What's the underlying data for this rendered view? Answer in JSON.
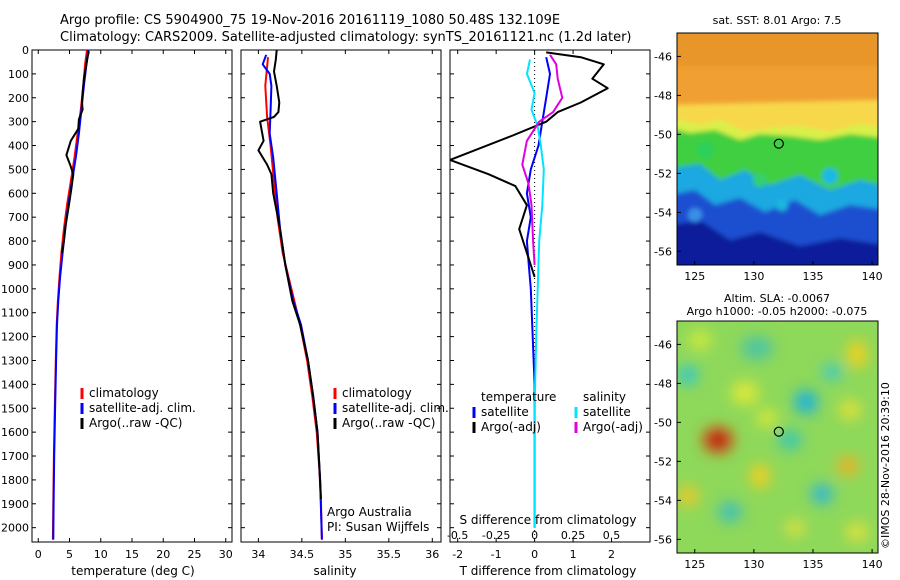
{
  "header": {
    "line1": "Argo profile: CS 5904900_75 19-Nov-2016 20161119_1080 50.48S 132.109E",
    "line2": "Climatology: CARS2009. Satellite-adjusted climatology: synTS_20161121.nc (1.2d later)"
  },
  "credit": "©IMOS 28-Nov-2016 20:39:10",
  "colors": {
    "climatology": "#ff0000",
    "satellite": "#0000ff",
    "argo": "#000000",
    "salinity_satellite": "#00e5ff",
    "salinity_argo": "#e000e0"
  },
  "chart_data": [
    {
      "type": "line",
      "name": "temperature-profile",
      "xlabel": "temperature (deg C)",
      "xlim": [
        -1,
        31
      ],
      "ylim": [
        0,
        2060
      ],
      "xticks": [
        0,
        5,
        10,
        15,
        20,
        25,
        30
      ],
      "yticks": [
        0,
        100,
        200,
        300,
        400,
        500,
        600,
        700,
        800,
        900,
        1000,
        1100,
        1200,
        1300,
        1400,
        1500,
        1600,
        1700,
        1800,
        1900,
        2000
      ],
      "legend": {
        "position": "center",
        "entries": [
          "climatology",
          "satellite-adj. clim.",
          "Argo(..raw -QC)"
        ]
      },
      "series": [
        {
          "name": "climatology",
          "color": "#ff0000",
          "points": [
            [
              7.8,
              0
            ],
            [
              7.5,
              60
            ],
            [
              7.2,
              150
            ],
            [
              6.8,
              250
            ],
            [
              6.3,
              350
            ],
            [
              5.8,
              450
            ],
            [
              5.2,
              550
            ],
            [
              4.6,
              650
            ],
            [
              4.1,
              750
            ],
            [
              3.7,
              850
            ],
            [
              3.4,
              950
            ],
            [
              3.15,
              1050
            ],
            [
              2.95,
              1150
            ],
            [
              2.8,
              1300
            ],
            [
              2.65,
              1500
            ],
            [
              2.5,
              1700
            ],
            [
              2.4,
              1900
            ],
            [
              2.35,
              2050
            ]
          ]
        },
        {
          "name": "satellite-adj. clim.",
          "color": "#0000ff",
          "points": [
            [
              8.0,
              0
            ],
            [
              7.8,
              40
            ],
            [
              7.3,
              150
            ],
            [
              6.9,
              250
            ],
            [
              6.5,
              350
            ],
            [
              6.0,
              450
            ],
            [
              5.4,
              550
            ],
            [
              4.8,
              650
            ],
            [
              4.3,
              750
            ],
            [
              3.9,
              850
            ],
            [
              3.5,
              950
            ],
            [
              3.2,
              1050
            ],
            [
              3.0,
              1150
            ],
            [
              2.85,
              1300
            ],
            [
              2.7,
              1500
            ],
            [
              2.55,
              1700
            ],
            [
              2.45,
              1900
            ],
            [
              2.4,
              2050
            ]
          ]
        },
        {
          "name": "Argo(..raw -QC)",
          "color": "#000000",
          "points": [
            [
              8.1,
              5
            ],
            [
              7.9,
              30
            ],
            [
              7.7,
              60
            ],
            [
              7.3,
              120
            ],
            [
              7.1,
              180
            ],
            [
              7.0,
              220
            ],
            [
              7.1,
              250
            ],
            [
              6.5,
              290
            ],
            [
              6.4,
              330
            ],
            [
              5.2,
              380
            ],
            [
              4.5,
              440
            ],
            [
              5.1,
              480
            ],
            [
              5.6,
              520
            ],
            [
              5.3,
              580
            ],
            [
              4.9,
              650
            ],
            [
              4.4,
              730
            ],
            [
              4.1,
              800
            ],
            [
              3.8,
              850
            ]
          ]
        }
      ]
    },
    {
      "type": "line",
      "name": "salinity-profile",
      "xlabel": "salinity",
      "xlim": [
        33.8,
        36.1
      ],
      "ylim": [
        0,
        2060
      ],
      "xticks": [
        34,
        34.5,
        35,
        35.5,
        36
      ],
      "xticklabels": [
        "34",
        "34.5",
        "35",
        "35.5",
        "36"
      ],
      "legend": {
        "position": "center",
        "entries": [
          "climatology",
          "satellite-adj. clim.",
          "Argo(..raw -QC)"
        ]
      },
      "annotations": [
        "Argo Australia",
        "PI: Susan Wijffels"
      ],
      "series": [
        {
          "name": "climatology",
          "color": "#ff0000",
          "points": [
            [
              34.11,
              30
            ],
            [
              34.08,
              150
            ],
            [
              34.1,
              280
            ],
            [
              34.14,
              400
            ],
            [
              34.18,
              550
            ],
            [
              34.22,
              700
            ],
            [
              34.28,
              850
            ],
            [
              34.38,
              1000
            ],
            [
              34.48,
              1150
            ],
            [
              34.56,
              1300
            ],
            [
              34.62,
              1450
            ],
            [
              34.67,
              1600
            ],
            [
              34.7,
              1750
            ],
            [
              34.72,
              1900
            ],
            [
              34.73,
              2050
            ]
          ]
        },
        {
          "name": "satellite-adj. clim.",
          "color": "#0000ff",
          "points": [
            [
              34.09,
              20
            ],
            [
              34.05,
              60
            ],
            [
              34.09,
              80
            ],
            [
              34.13,
              100
            ],
            [
              34.15,
              150
            ],
            [
              34.14,
              250
            ],
            [
              34.13,
              350
            ],
            [
              34.17,
              450
            ],
            [
              34.21,
              600
            ],
            [
              34.25,
              750
            ],
            [
              34.31,
              900
            ],
            [
              34.4,
              1050
            ],
            [
              34.49,
              1150
            ],
            [
              34.57,
              1300
            ],
            [
              34.63,
              1450
            ],
            [
              34.68,
              1600
            ],
            [
              34.71,
              1800
            ],
            [
              34.73,
              2050
            ]
          ]
        },
        {
          "name": "Argo(..raw -QC)",
          "color": "#000000",
          "points": [
            [
              34.21,
              0
            ],
            [
              34.2,
              40
            ],
            [
              34.18,
              90
            ],
            [
              34.21,
              150
            ],
            [
              34.24,
              220
            ],
            [
              34.23,
              260
            ],
            [
              34.18,
              280
            ],
            [
              34.02,
              300
            ],
            [
              34.06,
              380
            ],
            [
              34.0,
              420
            ],
            [
              34.1,
              480
            ],
            [
              34.15,
              520
            ],
            [
              34.17,
              600
            ],
            [
              34.25,
              750
            ],
            [
              34.31,
              900
            ],
            [
              34.39,
              1050
            ],
            [
              34.48,
              1150
            ],
            [
              34.57,
              1300
            ],
            [
              34.63,
              1450
            ],
            [
              34.68,
              1600
            ],
            [
              34.71,
              1800
            ],
            [
              34.72,
              1880
            ]
          ]
        }
      ]
    },
    {
      "type": "line",
      "name": "difference-profile",
      "xlabel": "T difference from climatology",
      "xlabel_top": "S difference from climatology",
      "xlim": [
        -2.2,
        3.0
      ],
      "ylim": [
        0,
        2060
      ],
      "xticks": [
        -2,
        -1,
        0,
        1,
        2
      ],
      "top_ticks": [
        -0.5,
        -0.25,
        0,
        0.25,
        0.5
      ],
      "top_ticklabels": [
        "-0.5",
        "-0.25",
        "0",
        "0.25",
        "0.5"
      ],
      "legend": {
        "position": "center",
        "temperature_title": "temperature",
        "salinity_title": "salinity",
        "temperature_entries": [
          "satellite",
          "Argo(-adj)"
        ],
        "salinity_entries": [
          "satellite",
          "Argo(-adj)"
        ]
      },
      "series": [
        {
          "name": "temperature satellite",
          "color": "#0000ff",
          "points": [
            [
              0.3,
              30
            ],
            [
              0.4,
              100
            ],
            [
              0.3,
              200
            ],
            [
              0.2,
              300
            ],
            [
              0.1,
              400
            ],
            [
              -0.1,
              500
            ],
            [
              -0.2,
              600
            ],
            [
              -0.1,
              700
            ],
            [
              -0.2,
              800
            ],
            [
              -0.15,
              900
            ],
            [
              -0.1,
              1000
            ],
            [
              -0.05,
              1200
            ],
            [
              0.0,
              1400
            ],
            [
              0.0,
              2000
            ]
          ]
        },
        {
          "name": "temperature Argo(-adj)",
          "color": "#000000",
          "points": [
            [
              0.3,
              10
            ],
            [
              1.2,
              30
            ],
            [
              1.8,
              60
            ],
            [
              1.5,
              120
            ],
            [
              1.9,
              160
            ],
            [
              1.2,
              220
            ],
            [
              0.6,
              260
            ],
            [
              0.3,
              300
            ],
            [
              -0.6,
              360
            ],
            [
              -2.2,
              460
            ],
            [
              -1.2,
              520
            ],
            [
              -0.5,
              570
            ],
            [
              -0.2,
              650
            ],
            [
              -0.4,
              750
            ],
            [
              -0.2,
              850
            ],
            [
              -0.1,
              900
            ],
            [
              0.0,
              950
            ]
          ]
        },
        {
          "name": "salinity satellite",
          "color": "#00e5ff",
          "points": [
            [
              -0.03,
              40
            ],
            [
              -0.05,
              100
            ],
            [
              0.0,
              180
            ],
            [
              -0.02,
              250
            ],
            [
              0.02,
              320
            ],
            [
              0.04,
              400
            ],
            [
              0.06,
              500
            ],
            [
              0.05,
              650
            ],
            [
              0.03,
              800
            ],
            [
              0.02,
              1000
            ],
            [
              0.01,
              1200
            ],
            [
              0.0,
              1500
            ],
            [
              0.0,
              2000
            ]
          ]
        },
        {
          "name": "salinity Argo(-adj)",
          "color": "#e000e0",
          "points": [
            [
              0.1,
              20
            ],
            [
              0.14,
              60
            ],
            [
              0.15,
              120
            ],
            [
              0.18,
              200
            ],
            [
              0.12,
              260
            ],
            [
              0.03,
              300
            ],
            [
              -0.05,
              380
            ],
            [
              -0.08,
              480
            ],
            [
              -0.04,
              560
            ],
            [
              -0.02,
              650
            ],
            [
              -0.01,
              800
            ],
            [
              0.0,
              900
            ]
          ]
        }
      ]
    },
    {
      "type": "heatmap",
      "name": "sst-map",
      "title": "sat. SST: 8.01 Argo: 7.5",
      "xlim": [
        123.5,
        140.5
      ],
      "ylim": [
        -56.7,
        -44.8
      ],
      "xticks": [
        125,
        130,
        135,
        140
      ],
      "yticks": [
        -46,
        -48,
        -50,
        -52,
        -54,
        -56
      ],
      "marker": {
        "lon": 132.109,
        "lat": -50.48
      }
    },
    {
      "type": "heatmap",
      "name": "sla-map",
      "title": "Altim. SLA: -0.0067",
      "subtitle": "Argo h1000: -0.05 h2000: -0.075",
      "xlim": [
        123.5,
        140.5
      ],
      "ylim": [
        -56.7,
        -44.8
      ],
      "xticks": [
        125,
        130,
        135,
        140
      ],
      "yticks": [
        -46,
        -48,
        -50,
        -52,
        -54,
        -56
      ],
      "marker": {
        "lon": 132.109,
        "lat": -50.48
      }
    }
  ]
}
